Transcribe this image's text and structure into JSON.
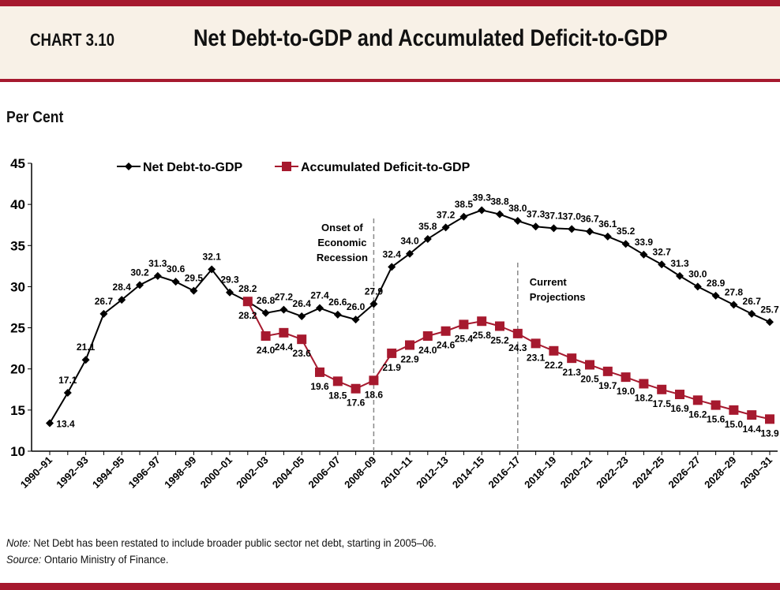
{
  "header": {
    "chart_number": "CHART 3.10",
    "title": "Net Debt-to-GDP and Accumulated Deficit-to-GDP"
  },
  "colors": {
    "accent": "#A6192E",
    "header_bg": "#F8F1E7",
    "net_debt": "#000000",
    "accumulated_deficit": "#A6192E"
  },
  "chart_data": {
    "type": "line",
    "title": "Net Debt-to-GDP and Accumulated Deficit-to-GDP",
    "ylabel": "Per Cent",
    "xlabel": "",
    "ylim": [
      10,
      45
    ],
    "yticks": [
      10,
      15,
      20,
      25,
      30,
      35,
      40,
      45
    ],
    "grid": false,
    "legend_position": "top-left",
    "x": [
      "1990–91",
      "1991–92",
      "1992–93",
      "1993–94",
      "1994–95",
      "1995–96",
      "1996–97",
      "1997–98",
      "1998–99",
      "1999–00",
      "2000–01",
      "2001–02",
      "2002–03",
      "2003–04",
      "2004–05",
      "2005–06",
      "2006–07",
      "2007–08",
      "2008–09",
      "2009–10",
      "2010–11",
      "2011–12",
      "2012–13",
      "2013–14",
      "2014–15",
      "2015–16",
      "2016–17",
      "2017–18",
      "2018–19",
      "2019–20",
      "2020–21",
      "2021–22",
      "2022–23",
      "2023–24",
      "2024–25",
      "2025–26",
      "2026–27",
      "2027–28",
      "2028–29",
      "2029–30",
      "2030–31"
    ],
    "xtick_labels": [
      "1990–91",
      "1992–93",
      "1994–95",
      "1996–97",
      "1998–99",
      "2000–01",
      "2002–03",
      "2004–05",
      "2006–07",
      "2008–09",
      "2010–11",
      "2012–13",
      "2014–15",
      "2016–17",
      "2018–19",
      "2020–21",
      "2022–23",
      "2024–25",
      "2026–27",
      "2028–29",
      "2030–31"
    ],
    "series": [
      {
        "name": "Net Debt-to-GDP",
        "marker": "diamond",
        "values": [
          13.4,
          17.1,
          21.1,
          26.7,
          28.4,
          30.2,
          31.3,
          30.6,
          29.5,
          32.1,
          29.3,
          28.2,
          26.8,
          27.2,
          26.4,
          27.4,
          26.6,
          26.0,
          27.9,
          32.4,
          34.0,
          35.8,
          37.2,
          38.5,
          39.3,
          38.8,
          38.0,
          37.3,
          37.1,
          37.0,
          36.7,
          36.1,
          35.2,
          33.9,
          32.7,
          31.3,
          30.0,
          28.9,
          27.8,
          26.7,
          25.7
        ]
      },
      {
        "name": "Accumulated Deficit-to-GDP",
        "marker": "square",
        "values": [
          null,
          null,
          null,
          null,
          null,
          null,
          null,
          null,
          null,
          null,
          null,
          28.2,
          24.0,
          24.4,
          23.6,
          19.6,
          18.5,
          17.6,
          18.6,
          21.9,
          22.9,
          24.0,
          24.6,
          25.4,
          25.8,
          25.2,
          24.3,
          23.1,
          22.2,
          21.3,
          20.5,
          19.7,
          19.0,
          18.2,
          17.5,
          16.9,
          16.2,
          15.6,
          15.0,
          14.4,
          13.9
        ]
      }
    ],
    "annotations": [
      {
        "at": "2008–09",
        "lines": [
          "Onset of",
          "Economic",
          "Recession"
        ],
        "style": "dashed-vertical"
      },
      {
        "at": "2016–17",
        "lines": [
          "Current",
          "Projections"
        ],
        "style": "dashed-vertical"
      }
    ]
  },
  "footer": {
    "note_label": "Note:",
    "note_text": " Net Debt has been restated to include broader public sector net debt, starting in 2005–06.",
    "source_label": "Source:",
    "source_text": " Ontario Ministry of Finance."
  }
}
